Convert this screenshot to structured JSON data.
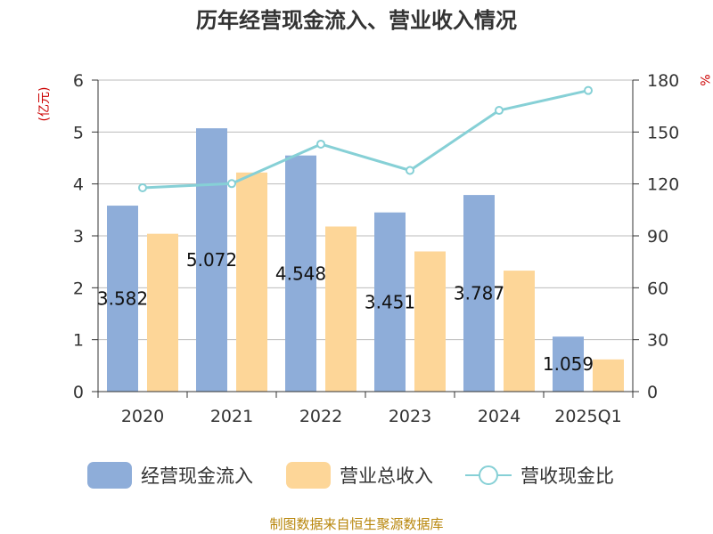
{
  "title": "历年经营现金流入、营业收入情况",
  "y_left_unit": "(亿元)",
  "y_right_unit": "%",
  "source": "制图数据来自恒生聚源数据库",
  "colors": {
    "cash_inflow": "#8EADD9",
    "revenue": "#FDD698",
    "ratio": "#86D0D6",
    "unit_text": "#CC0000",
    "source_text": "#B8860B",
    "axis": "#333333",
    "grid": "#BBBBBB"
  },
  "legend": {
    "cash_inflow": "经营现金流入",
    "revenue": "营业总收入",
    "ratio": "营收现金比"
  },
  "chart_data": {
    "type": "bar",
    "title": "历年经营现金流入、营业收入情况",
    "categories": [
      "2020",
      "2021",
      "2022",
      "2023",
      "2024",
      "2025Q1"
    ],
    "y_left": {
      "unit": "(亿元)",
      "range": [
        0,
        6
      ],
      "ticks": [
        "0",
        "1",
        "2",
        "3",
        "4",
        "5",
        "6"
      ]
    },
    "y_right": {
      "unit": "%",
      "range": [
        0,
        180
      ],
      "ticks": [
        "0",
        "30",
        "60",
        "90",
        "120",
        "150",
        "180"
      ]
    },
    "grid": true,
    "legend_position": "bottom",
    "series": [
      {
        "name": "经营现金流入",
        "type": "bar",
        "axis": "left",
        "values": [
          3.582,
          5.072,
          4.548,
          3.451,
          3.787,
          1.059
        ],
        "labels": [
          "3.582",
          "5.072",
          "4.548",
          "3.451",
          "3.787",
          "1.059"
        ]
      },
      {
        "name": "营业总收入",
        "type": "bar",
        "axis": "left",
        "values": [
          3.04,
          4.22,
          3.18,
          2.7,
          2.33,
          0.62
        ]
      },
      {
        "name": "营收现金比",
        "type": "line",
        "axis": "right",
        "values": [
          117.8,
          120.2,
          143.0,
          127.8,
          162.5,
          174.0
        ]
      }
    ]
  }
}
